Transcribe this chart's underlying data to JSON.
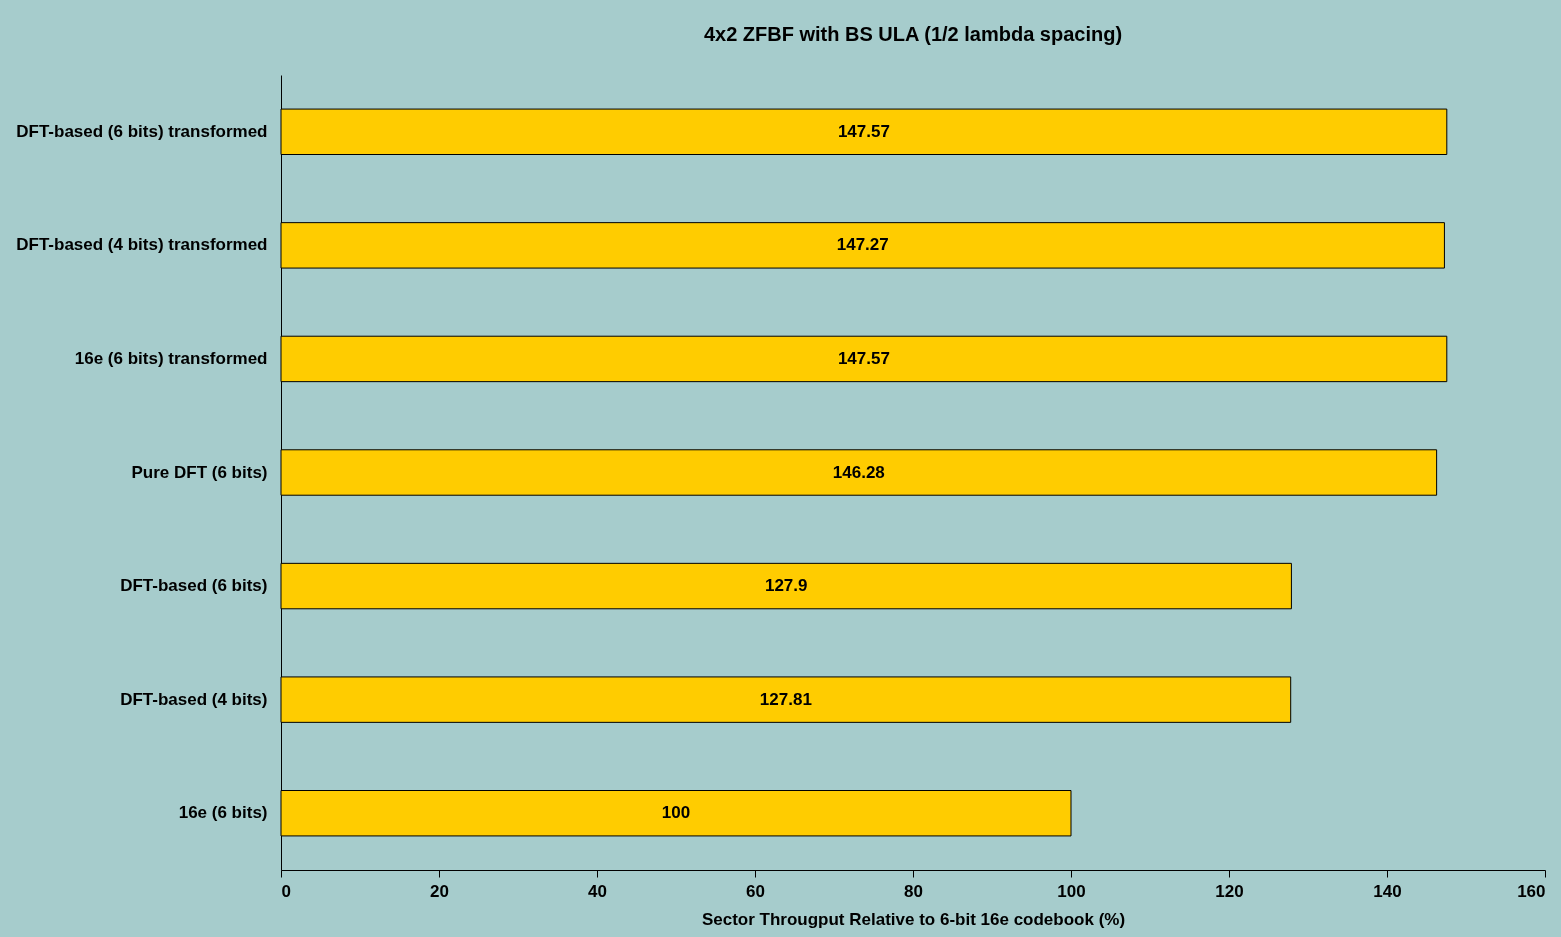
{
  "chart_data": {
    "type": "bar",
    "orientation": "horizontal",
    "title": "4x2 ZFBF with BS ULA (1/2 lambda spacing)",
    "xlabel": "Sector Througput Relative to 6-bit 16e codebook (%)",
    "categories": [
      "DFT-based (6 bits) transformed",
      "DFT-based (4 bits) transformed",
      "16e (6 bits) transformed",
      "Pure DFT (6 bits)",
      "DFT-based (6 bits)",
      "DFT-based (4 bits)",
      "16e (6 bits)"
    ],
    "values": [
      147.57,
      147.27,
      147.57,
      146.28,
      127.9,
      127.81,
      100
    ],
    "color": "#ffcc00",
    "xlim": [
      0,
      160
    ],
    "xticks": [
      0,
      20,
      40,
      60,
      80,
      100,
      120,
      140,
      160
    ],
    "data_labels": true,
    "grid": false
  }
}
